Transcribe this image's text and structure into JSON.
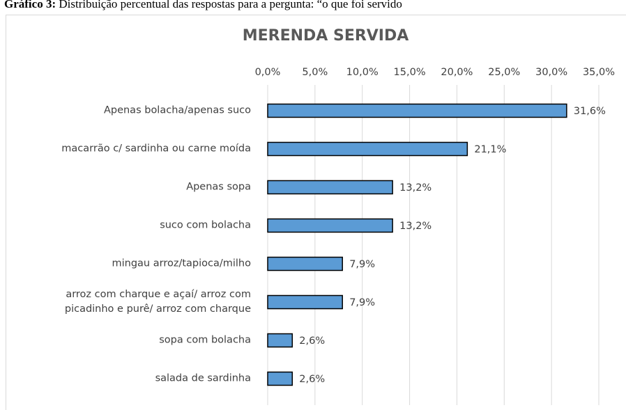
{
  "caption": {
    "label": "Gráfico 3:",
    "text": "Distribuição percentual das respostas para a pergunta: “o que foi servido"
  },
  "chart_data": {
    "type": "barh",
    "title": "MERENDA SERVIDA",
    "categories": [
      "Apenas bolacha/apenas suco",
      "macarrão c/ sardinha ou carne moída",
      "Apenas sopa",
      "suco com bolacha ",
      "mingau arroz/tapioca/milho",
      "arroz com charque e açaí/ arroz com\npicadinho e purê/ arroz com charque",
      "sopa com bolacha",
      "salada de sardinha"
    ],
    "values": [
      31.6,
      21.1,
      13.2,
      13.2,
      7.9,
      7.9,
      2.6,
      2.6
    ],
    "value_labels": [
      "31,6%",
      "21,1%",
      "13,2%",
      "13,2%",
      "7,9%",
      "7,9%",
      "2,6%",
      "2,6%"
    ],
    "color": "#5b9bd5",
    "xlim": [
      0,
      35
    ],
    "xticks": [
      {
        "value": 0,
        "label": "0,0%"
      },
      {
        "value": 5,
        "label": "5,0%"
      },
      {
        "value": 10,
        "label": "10,0%"
      },
      {
        "value": 15,
        "label": "15,0%"
      },
      {
        "value": 20,
        "label": "20,0%"
      },
      {
        "value": 25,
        "label": "25,0%"
      },
      {
        "value": 30,
        "label": "30,0%"
      },
      {
        "value": 35,
        "label": "35,0%"
      }
    ],
    "grid": true
  }
}
